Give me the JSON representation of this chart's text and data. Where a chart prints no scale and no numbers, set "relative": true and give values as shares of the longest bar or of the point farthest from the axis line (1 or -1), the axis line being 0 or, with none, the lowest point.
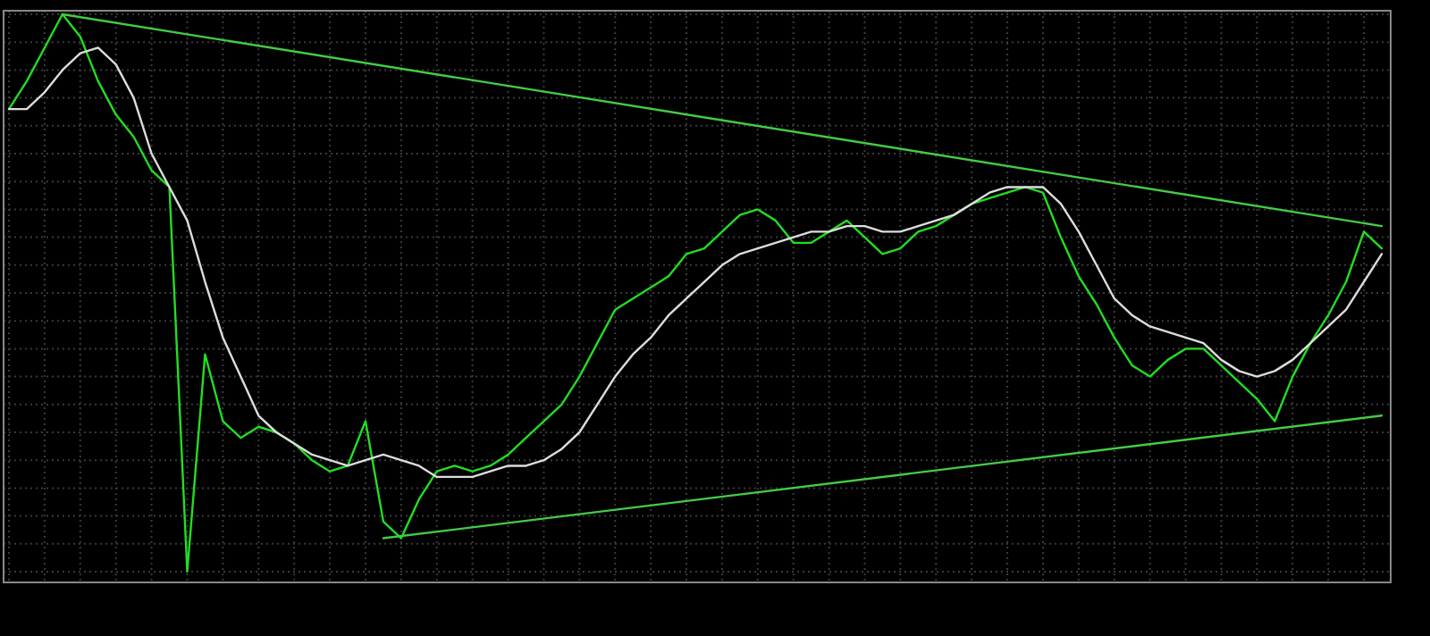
{
  "chart_data": {
    "type": "line",
    "relative": true,
    "grid": true,
    "marker": "none",
    "line_style": "solid",
    "categories": [
      null,
      null,
      null,
      null,
      null,
      null,
      null,
      null,
      null,
      null,
      null,
      null,
      null,
      null,
      null,
      null,
      null,
      null,
      null,
      null,
      null,
      null,
      null,
      null,
      null,
      null,
      null,
      null,
      null,
      null,
      null,
      null,
      null,
      null,
      null,
      null,
      null,
      null,
      null,
      null,
      null,
      null,
      null,
      null,
      null,
      null,
      null,
      null,
      null,
      null,
      null,
      null,
      null,
      null,
      null,
      null,
      null,
      null,
      null,
      null,
      null,
      null,
      null,
      null,
      null,
      null,
      null,
      null,
      null,
      null,
      null,
      null,
      null,
      null,
      null,
      null,
      null,
      null
    ],
    "series": [
      {
        "color": "#22dd22",
        "values": [
          0.83,
          0.88,
          0.94,
          1.0,
          0.96,
          0.88,
          0.82,
          0.78,
          0.72,
          0.69,
          0,
          0.39,
          0.27,
          0.24,
          0.26,
          0.25,
          0.23,
          0.2,
          0.18,
          0.19,
          0.27,
          0.09,
          0.06,
          0.13,
          0.18,
          0.19,
          0.18,
          0.19,
          0.21,
          0.24,
          0.27,
          0.3,
          0.35,
          0.41,
          0.47,
          0.49,
          0.51,
          0.53,
          0.57,
          0.58,
          0.61,
          0.64,
          0.65,
          0.63,
          0.59,
          0.59,
          0.61,
          0.63,
          0.6,
          0.57,
          0.58,
          0.61,
          0.62,
          0.64,
          0.66,
          0.67,
          0.68,
          0.69,
          0.68,
          0.6,
          0.53,
          0.48,
          0.42,
          0.37,
          0.35,
          0.38,
          0.4,
          0.4,
          0.37,
          0.34,
          0.31,
          0.27,
          0.35,
          0.41,
          0.46,
          0.52,
          0.61,
          0.58
        ]
      },
      {
        "color": "#dddddd",
        "values": [
          0.83,
          0.83,
          0.86,
          0.9,
          0.93,
          0.94,
          0.91,
          0.85,
          0.75,
          0.69,
          0.63,
          0.52,
          0.42,
          0.35,
          0.28,
          0.25,
          0.23,
          0.21,
          0.2,
          0.19,
          0.2,
          0.21,
          0.2,
          0.19,
          0.17,
          0.17,
          0.17,
          0.18,
          0.19,
          0.19,
          0.2,
          0.22,
          0.25,
          0.3,
          0.35,
          0.39,
          0.42,
          0.46,
          0.49,
          0.52,
          0.55,
          0.57,
          0.58,
          0.59,
          0.6,
          0.61,
          0.61,
          0.62,
          0.62,
          0.61,
          0.61,
          0.62,
          0.63,
          0.64,
          0.66,
          0.68,
          0.69,
          0.69,
          0.69,
          0.66,
          0.61,
          0.55,
          0.49,
          0.46,
          0.44,
          0.43,
          0.42,
          0.41,
          0.38,
          0.36,
          0.35,
          0.36,
          0.38,
          0.41,
          0.44,
          0.47,
          0.52,
          0.57
        ]
      },
      {
        "color": "#44cc44",
        "values": [
          null,
          null,
          null,
          1.0,
          null,
          null,
          null,
          null,
          null,
          null,
          null,
          null,
          null,
          null,
          null,
          null,
          null,
          null,
          null,
          null,
          null,
          null,
          null,
          null,
          null,
          null,
          null,
          null,
          null,
          null,
          null,
          null,
          null,
          null,
          null,
          null,
          null,
          null,
          null,
          null,
          null,
          null,
          null,
          null,
          null,
          null,
          null,
          null,
          null,
          null,
          null,
          null,
          null,
          null,
          null,
          null,
          null,
          null,
          null,
          null,
          null,
          null,
          null,
          null,
          null,
          null,
          null,
          null,
          null,
          null,
          null,
          null,
          null,
          null,
          null,
          null,
          null,
          0.62
        ]
      },
      {
        "color": "#44cc44",
        "values": [
          null,
          null,
          null,
          null,
          null,
          null,
          null,
          null,
          null,
          null,
          null,
          null,
          null,
          null,
          null,
          null,
          null,
          null,
          null,
          null,
          null,
          0.06,
          null,
          null,
          null,
          null,
          null,
          null,
          null,
          null,
          null,
          null,
          null,
          null,
          null,
          null,
          null,
          null,
          null,
          null,
          null,
          null,
          null,
          null,
          null,
          null,
          null,
          null,
          null,
          null,
          null,
          null,
          null,
          null,
          null,
          null,
          null,
          null,
          null,
          null,
          null,
          null,
          null,
          null,
          null,
          null,
          null,
          null,
          null,
          null,
          null,
          null,
          null,
          null,
          null,
          null,
          null,
          0.28
        ]
      }
    ]
  }
}
